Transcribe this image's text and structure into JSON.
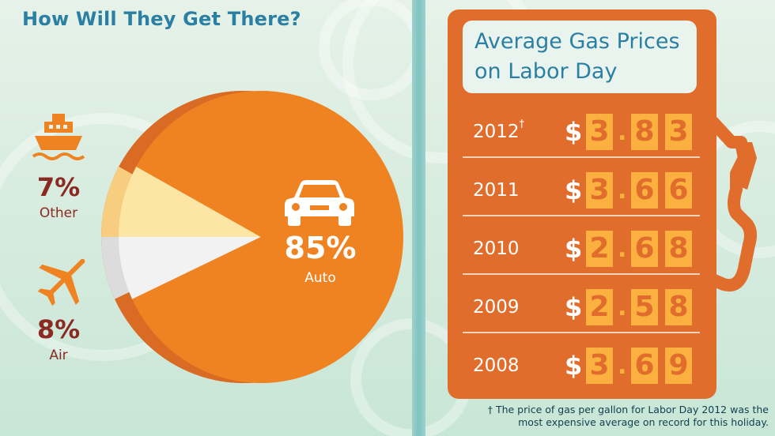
{
  "left": {
    "title": "How Will They Get There?",
    "segments": [
      {
        "name": "Other",
        "percent_label": "7%",
        "label": "Other",
        "icon": "boat-icon",
        "color": "#f2f2f2",
        "side_color": "#dcdcdc"
      },
      {
        "name": "Air",
        "percent_label": "8%",
        "label": "Air",
        "icon": "airplane-icon",
        "color": "#fde6a4",
        "side_color": "#f7ce80"
      },
      {
        "name": "Auto",
        "percent_label": "85%",
        "label": "Auto",
        "icon": "car-icon",
        "color": "#ef8321",
        "side_color": "#d96b24"
      }
    ]
  },
  "right": {
    "title_line1": "Average Gas Prices",
    "title_line2": "on Labor Day",
    "rows": [
      {
        "year": "2012",
        "mark": "†",
        "dollar": "$",
        "d1": "3",
        "d2": "8",
        "d3": "3"
      },
      {
        "year": "2011",
        "mark": "",
        "dollar": "$",
        "d1": "3",
        "d2": "6",
        "d3": "6"
      },
      {
        "year": "2010",
        "mark": "",
        "dollar": "$",
        "d1": "2",
        "d2": "6",
        "d3": "8"
      },
      {
        "year": "2009",
        "mark": "",
        "dollar": "$",
        "d1": "2",
        "d2": "5",
        "d3": "8"
      },
      {
        "year": "2008",
        "mark": "",
        "dollar": "$",
        "d1": "3",
        "d2": "6",
        "d3": "9"
      }
    ],
    "footnote_line1": "† The price of gas per gallon for Labor Day 2012 was the",
    "footnote_line2": "most expensive average on record for this holiday."
  },
  "chart_data": [
    {
      "type": "pie",
      "title": "How Will They Get There?",
      "categories": [
        "Auto",
        "Air",
        "Other"
      ],
      "values": [
        85,
        8,
        7
      ]
    },
    {
      "type": "table",
      "title": "Average Gas Prices on Labor Day",
      "x": [
        "2012",
        "2011",
        "2010",
        "2009",
        "2008"
      ],
      "values": [
        3.83,
        3.66,
        2.68,
        2.58,
        3.69
      ]
    }
  ],
  "colors": {
    "accent_blue": "#2a7fa3",
    "pump_orange": "#e06d2b",
    "digit_yellow": "#fbb040",
    "label_red": "#8a2a22"
  }
}
